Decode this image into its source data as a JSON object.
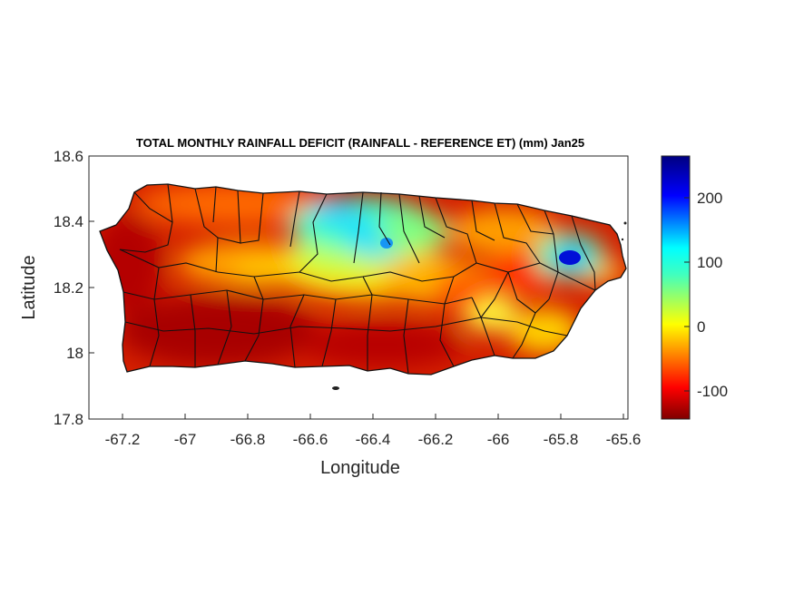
{
  "title": "TOTAL MONTHLY RAINFALL DEFICIT (RAINFALL - REFERENCE ET) (mm) Jan25",
  "xlabel": "Longitude",
  "ylabel": "Latitude",
  "x_ticks": [
    "-67.2",
    "-67",
    "-66.8",
    "-66.6",
    "-66.4",
    "-66.2",
    "-66",
    "-65.8",
    "-65.6"
  ],
  "y_ticks": [
    "18.6",
    "18.4",
    "18.2",
    "18"
  ],
  "y_tick_bottom": "17.8",
  "colorbar": {
    "ticks": [
      "200",
      "100",
      "0",
      "-100"
    ],
    "range": [
      -145,
      265
    ],
    "colormap": "jet"
  },
  "map": {
    "region": "Puerto Rico",
    "xlim": [
      -67.3,
      -65.57
    ],
    "ylim": [
      17.8,
      18.6
    ],
    "variable": "rainfall minus reference ET (mm)",
    "highlights": [
      {
        "lon": -65.77,
        "lat": 18.29,
        "value": 250
      },
      {
        "lon": -66.37,
        "lat": 18.33,
        "value": 140
      },
      {
        "lon": -66.4,
        "lat": 18.4,
        "value": 110
      },
      {
        "lon": -66.52,
        "lat": 18.38,
        "value": 80
      }
    ]
  }
}
